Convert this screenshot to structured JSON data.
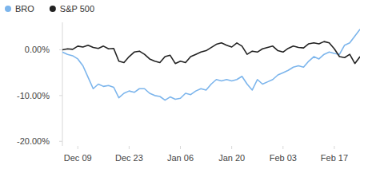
{
  "chart_data": {
    "type": "line",
    "categories": [
      null,
      null,
      null,
      "Dec 09",
      null,
      null,
      null,
      null,
      null,
      null,
      null,
      null,
      null,
      "Dec 23",
      null,
      null,
      null,
      null,
      null,
      null,
      null,
      null,
      null,
      "Jan 06",
      null,
      null,
      null,
      null,
      null,
      null,
      null,
      null,
      null,
      "Jan 20",
      null,
      null,
      null,
      null,
      null,
      null,
      null,
      null,
      null,
      "Feb 03",
      null,
      null,
      null,
      null,
      null,
      null,
      null,
      null,
      null,
      "Feb 17",
      null,
      null,
      null,
      null,
      null
    ],
    "series": [
      {
        "name": "BRO",
        "color": "#7cb5ec",
        "values": [
          -0.5,
          -1.0,
          -1.3,
          -2.0,
          -3.5,
          -6.0,
          -8.5,
          -7.5,
          -8.0,
          -7.8,
          -8.2,
          -10.5,
          -9.5,
          -9.0,
          -9.3,
          -8.5,
          -8.5,
          -9.5,
          -10.0,
          -10.2,
          -11.0,
          -10.3,
          -10.8,
          -10.6,
          -9.5,
          -9.8,
          -9.0,
          -8.5,
          -8.8,
          -7.5,
          -6.5,
          -6.8,
          -6.5,
          -6.8,
          -6.5,
          -5.8,
          -7.5,
          -8.8,
          -6.5,
          -7.5,
          -7.0,
          -6.5,
          -5.5,
          -5.0,
          -4.5,
          -3.8,
          -3.5,
          -3.8,
          -2.5,
          -1.5,
          -2.0,
          -1.0,
          -0.5,
          -0.8,
          -1.0,
          1.0,
          1.5,
          3.0,
          4.5
        ]
      },
      {
        "name": "S&P 500",
        "color": "#222222",
        "values": [
          0.0,
          0.2,
          0.1,
          0.8,
          0.6,
          1.0,
          0.5,
          0.3,
          0.8,
          0.2,
          0.3,
          -2.5,
          -2.8,
          -1.5,
          -0.5,
          -0.3,
          -1.0,
          -2.0,
          -2.5,
          -2.8,
          -1.5,
          -1.2,
          -3.0,
          -2.5,
          -2.8,
          -1.5,
          -1.0,
          -0.5,
          -0.2,
          0.5,
          1.2,
          1.5,
          1.0,
          0.6,
          1.5,
          0.8,
          -1.0,
          -0.3,
          -0.5,
          0.2,
          0.5,
          0.8,
          -0.2,
          -0.5,
          0.3,
          0.8,
          0.5,
          0.4,
          1.3,
          1.5,
          1.3,
          1.8,
          1.5,
          0.2,
          -1.5,
          -1.7,
          -1.0,
          -3.0,
          -1.5
        ]
      }
    ],
    "ylim": [
      -21,
      6
    ],
    "yticks": [
      {
        "value": 0,
        "label": "0.00%"
      },
      {
        "value": -10,
        "label": "-10.00%"
      },
      {
        "value": -20,
        "label": "-20.00%"
      }
    ],
    "grid": false,
    "legend": "top-left"
  }
}
